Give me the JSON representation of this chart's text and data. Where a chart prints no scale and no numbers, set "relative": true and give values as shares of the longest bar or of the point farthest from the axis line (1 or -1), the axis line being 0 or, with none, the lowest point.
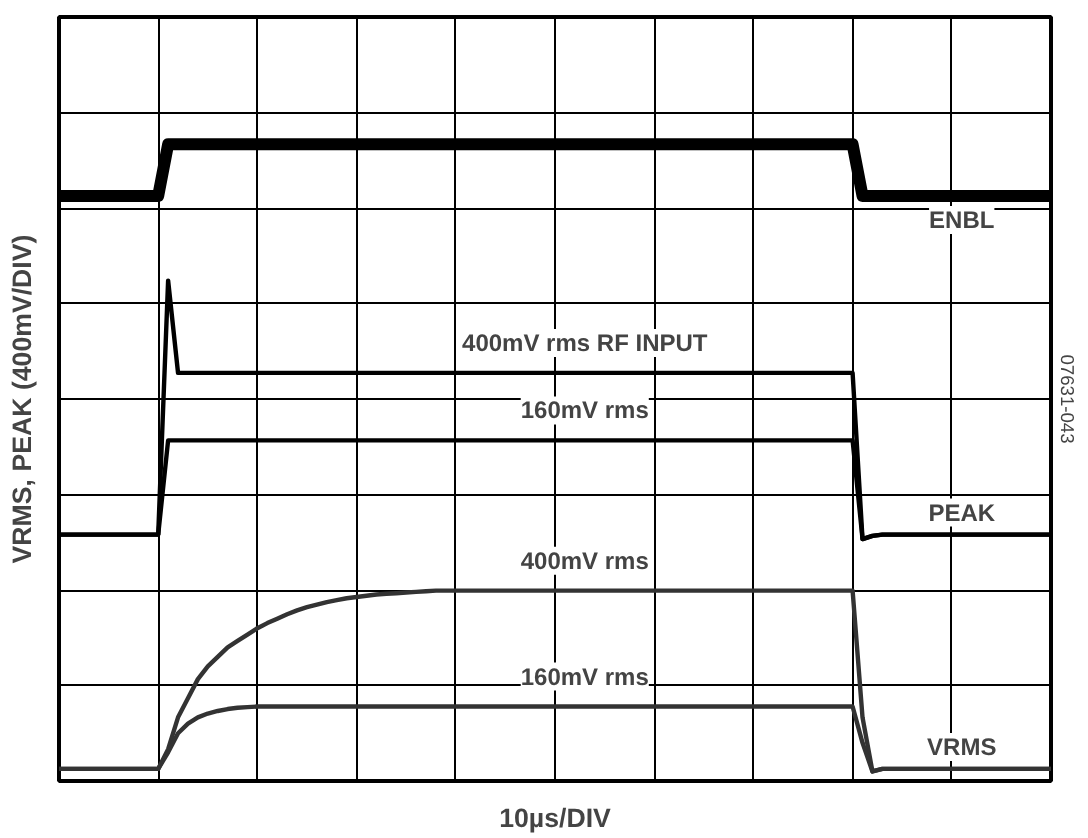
{
  "chart_data": {
    "type": "line",
    "relative": true,
    "xlabel": "10µs/DIV",
    "ylabel": "VRMS, PEAK (400mV/DIV)",
    "categories": [
      null,
      null,
      null,
      null,
      null,
      null,
      null,
      null,
      null,
      null,
      null,
      null,
      null,
      null,
      null,
      null,
      null,
      null,
      null,
      null,
      null,
      null,
      null,
      null,
      null,
      null,
      null,
      null,
      null,
      null,
      null,
      null,
      null,
      null,
      null,
      null,
      null,
      null,
      null,
      null,
      null,
      null,
      null,
      null,
      null,
      null,
      null,
      null,
      null,
      null,
      null,
      null,
      null,
      null,
      null,
      null,
      null,
      null,
      null,
      null,
      null,
      null,
      null,
      null,
      null,
      null,
      null,
      null,
      null,
      null,
      null,
      null,
      null,
      null,
      null,
      null,
      null,
      null,
      null,
      null,
      null,
      null,
      null,
      null,
      null,
      null,
      null,
      null,
      null,
      null,
      null,
      null,
      null,
      null,
      null,
      null,
      null,
      null,
      null,
      null,
      null
    ],
    "grid": true,
    "line_style": "solid",
    "series": [
      {
        "name": "ENBL",
        "color": "#000000",
        "values": [
          0.919,
          0.919,
          0.919,
          0.919,
          0.919,
          0.919,
          0.919,
          0.919,
          0.919,
          0.919,
          0.919,
          1,
          1,
          1,
          1,
          1,
          1,
          1,
          1,
          1,
          1,
          1,
          1,
          1,
          1,
          1,
          1,
          1,
          1,
          1,
          1,
          1,
          1,
          1,
          1,
          1,
          1,
          1,
          1,
          1,
          1,
          1,
          1,
          1,
          1,
          1,
          1,
          1,
          1,
          1,
          1,
          1,
          1,
          1,
          1,
          1,
          1,
          1,
          1,
          1,
          1,
          1,
          1,
          1,
          1,
          1,
          1,
          1,
          1,
          1,
          1,
          1,
          1,
          1,
          1,
          1,
          1,
          1,
          1,
          1,
          1,
          0.919,
          0.919,
          0.919,
          0.919,
          0.919,
          0.919,
          0.919,
          0.919,
          0.919,
          0.919,
          0.919,
          0.919,
          0.919,
          0.919,
          0.919,
          0.919,
          0.919,
          0.919,
          0.919,
          0.919
        ]
      },
      {
        "name": "400mV rms RF INPUT",
        "color": "#000000",
        "values": [
          0.387,
          0.387,
          0.387,
          0.387,
          0.387,
          0.387,
          0.387,
          0.387,
          0.387,
          0.387,
          0.387,
          0.786,
          0.641,
          0.641,
          0.641,
          0.641,
          0.641,
          0.641,
          0.641,
          0.641,
          0.641,
          0.641,
          0.641,
          0.641,
          0.641,
          0.641,
          0.641,
          0.641,
          0.641,
          0.641,
          0.641,
          0.641,
          0.641,
          0.641,
          0.641,
          0.641,
          0.641,
          0.641,
          0.641,
          0.641,
          0.641,
          0.641,
          0.641,
          0.641,
          0.641,
          0.641,
          0.641,
          0.641,
          0.641,
          0.641,
          0.641,
          0.641,
          0.641,
          0.641,
          0.641,
          0.641,
          0.641,
          0.641,
          0.641,
          0.641,
          0.641,
          0.641,
          0.641,
          0.641,
          0.641,
          0.641,
          0.641,
          0.641,
          0.641,
          0.641,
          0.641,
          0.641,
          0.641,
          0.641,
          0.641,
          0.641,
          0.641,
          0.641,
          0.641,
          0.641,
          0.641,
          0.38,
          0.385,
          0.387,
          0.387,
          0.387,
          0.387,
          0.387,
          0.387,
          0.387,
          0.387,
          0.387,
          0.387,
          0.387,
          0.387,
          0.387,
          0.387,
          0.387,
          0.387,
          0.387,
          0.387
        ]
      },
      {
        "name": "160mV rms",
        "color": "#000000",
        "values": [
          0.387,
          0.387,
          0.387,
          0.387,
          0.387,
          0.387,
          0.387,
          0.387,
          0.387,
          0.387,
          0.387,
          0.535,
          0.535,
          0.535,
          0.535,
          0.535,
          0.535,
          0.535,
          0.535,
          0.535,
          0.535,
          0.535,
          0.535,
          0.535,
          0.535,
          0.535,
          0.535,
          0.535,
          0.535,
          0.535,
          0.535,
          0.535,
          0.535,
          0.535,
          0.535,
          0.535,
          0.535,
          0.535,
          0.535,
          0.535,
          0.535,
          0.535,
          0.535,
          0.535,
          0.535,
          0.535,
          0.535,
          0.535,
          0.535,
          0.535,
          0.535,
          0.535,
          0.535,
          0.535,
          0.535,
          0.535,
          0.535,
          0.535,
          0.535,
          0.535,
          0.535,
          0.535,
          0.535,
          0.535,
          0.535,
          0.535,
          0.535,
          0.535,
          0.535,
          0.535,
          0.535,
          0.535,
          0.535,
          0.535,
          0.535,
          0.535,
          0.535,
          0.535,
          0.535,
          0.535,
          0.535,
          0.38,
          0.385,
          0.387,
          0.387,
          0.387,
          0.387,
          0.387,
          0.387,
          0.387,
          0.387,
          0.387,
          0.387,
          0.387,
          0.387,
          0.387,
          0.387,
          0.387,
          0.387,
          0.387,
          0.387
        ]
      },
      {
        "name": "400mV rms",
        "color": "#333333",
        "values": [
          0.019,
          0.019,
          0.019,
          0.019,
          0.019,
          0.019,
          0.019,
          0.019,
          0.019,
          0.019,
          0.019,
          0.05,
          0.1,
          0.13,
          0.16,
          0.18,
          0.195,
          0.21,
          0.22,
          0.23,
          0.24,
          0.248,
          0.255,
          0.262,
          0.268,
          0.273,
          0.277,
          0.281,
          0.284,
          0.287,
          0.289,
          0.291,
          0.293,
          0.294,
          0.295,
          0.296,
          0.297,
          0.298,
          0.299,
          0.299,
          0.299,
          0.299,
          0.299,
          0.299,
          0.299,
          0.299,
          0.299,
          0.299,
          0.299,
          0.299,
          0.299,
          0.299,
          0.299,
          0.299,
          0.299,
          0.299,
          0.299,
          0.299,
          0.299,
          0.299,
          0.299,
          0.299,
          0.299,
          0.299,
          0.299,
          0.299,
          0.299,
          0.299,
          0.299,
          0.299,
          0.299,
          0.299,
          0.299,
          0.299,
          0.299,
          0.299,
          0.299,
          0.299,
          0.299,
          0.299,
          0.299,
          0.1,
          0.015,
          0.019,
          0.019,
          0.019,
          0.019,
          0.019,
          0.019,
          0.019,
          0.019,
          0.019,
          0.019,
          0.019,
          0.019,
          0.019,
          0.019,
          0.019,
          0.019,
          0.019,
          0.019
        ]
      },
      {
        "name": "160mV rms",
        "color": "#333333",
        "values": [
          0.019,
          0.019,
          0.019,
          0.019,
          0.019,
          0.019,
          0.019,
          0.019,
          0.019,
          0.019,
          0.019,
          0.045,
          0.075,
          0.09,
          0.1,
          0.106,
          0.11,
          0.113,
          0.115,
          0.116,
          0.117,
          0.117,
          0.117,
          0.117,
          0.117,
          0.117,
          0.117,
          0.117,
          0.117,
          0.117,
          0.117,
          0.117,
          0.117,
          0.117,
          0.117,
          0.117,
          0.117,
          0.117,
          0.117,
          0.117,
          0.117,
          0.117,
          0.117,
          0.117,
          0.117,
          0.117,
          0.117,
          0.117,
          0.117,
          0.117,
          0.117,
          0.117,
          0.117,
          0.117,
          0.117,
          0.117,
          0.117,
          0.117,
          0.117,
          0.117,
          0.117,
          0.117,
          0.117,
          0.117,
          0.117,
          0.117,
          0.117,
          0.117,
          0.117,
          0.117,
          0.117,
          0.117,
          0.117,
          0.117,
          0.117,
          0.117,
          0.117,
          0.117,
          0.117,
          0.117,
          0.117,
          0.06,
          0.015,
          0.019,
          0.019,
          0.019,
          0.019,
          0.019,
          0.019,
          0.019,
          0.019,
          0.019,
          0.019,
          0.019,
          0.019,
          0.019,
          0.019,
          0.019,
          0.019,
          0.019,
          0.019
        ]
      }
    ],
    "annotations": [
      "PEAK",
      "VRMS",
      "07631-043"
    ]
  }
}
